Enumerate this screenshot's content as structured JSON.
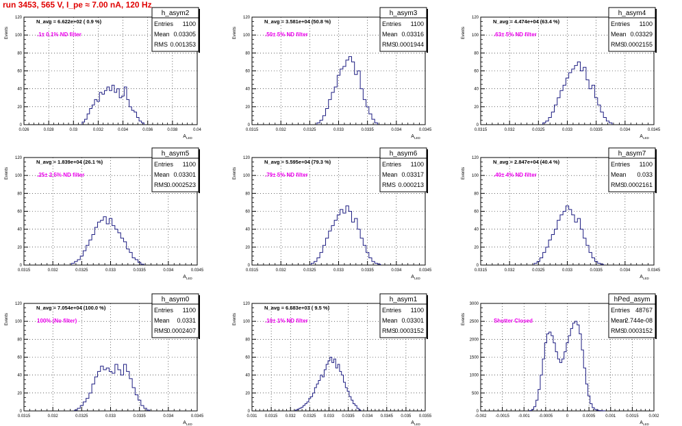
{
  "page": {
    "run_title": "run 3453,   565 V, I_pe ≈ 7.00 nA, 120 Hz",
    "colors": {
      "histogram": "#1a1a80",
      "filter_label": "#ee00ee",
      "run_title": "#e00000"
    }
  },
  "chart_data": [
    {
      "type": "histogram",
      "name": "h_asym2",
      "navg": "N_avg = 6.622e+02 ( 0.9 %)",
      "filter": ".1± 0.1% ND filter",
      "stats": {
        "entries": "1100",
        "mean": "0.03305",
        "rms": "0.001353"
      },
      "ylabel": "Events",
      "xlabel": "A_LED",
      "xlim": [
        0.026,
        0.04
      ],
      "ylim": [
        0,
        120
      ],
      "xticks": [
        "0.026",
        "0.028",
        "0.03",
        "0.032",
        "0.034",
        "0.036",
        "0.038",
        "0.04"
      ],
      "yticks": [
        "0",
        "20",
        "40",
        "60",
        "80",
        "100",
        "120"
      ],
      "x": [
        0.0308,
        0.031,
        0.0312,
        0.0314,
        0.0316,
        0.0318,
        0.032,
        0.0322,
        0.0324,
        0.0326,
        0.0328,
        0.033,
        0.0332,
        0.0334,
        0.0336,
        0.0338,
        0.034,
        0.0342,
        0.0344,
        0.0346,
        0.0348,
        0.035,
        0.0352,
        0.0354,
        0.0356
      ],
      "values": [
        3,
        6,
        12,
        18,
        22,
        28,
        26,
        36,
        34,
        38,
        42,
        38,
        44,
        36,
        40,
        30,
        32,
        42,
        28,
        20,
        16,
        14,
        8,
        4,
        2
      ]
    },
    {
      "type": "histogram",
      "name": "h_asym3",
      "navg": "N_avg = 3.581e+04 (50.8 %)",
      "filter": ".50± 5% ND filter",
      "stats": {
        "entries": "1100",
        "mean": "0.03316",
        "rms": "0.0001944"
      },
      "ylabel": "Events",
      "xlabel": "A_LED",
      "xlim": [
        0.0315,
        0.0345
      ],
      "ylim": [
        0,
        120
      ],
      "xticks": [
        "0.0315",
        "0.032",
        "0.0325",
        "0.033",
        "0.0335",
        "0.034",
        "0.0345"
      ],
      "yticks": [
        "0",
        "20",
        "40",
        "60",
        "80",
        "100",
        "120"
      ],
      "x": [
        0.03265,
        0.0327,
        0.03275,
        0.0328,
        0.03285,
        0.0329,
        0.03295,
        0.033,
        0.03305,
        0.0331,
        0.03315,
        0.0332,
        0.03325,
        0.0333,
        0.03335,
        0.0334,
        0.03345,
        0.0335,
        0.03355,
        0.0336,
        0.03365
      ],
      "values": [
        2,
        5,
        10,
        18,
        28,
        36,
        42,
        55,
        62,
        65,
        72,
        76,
        70,
        56,
        60,
        40,
        28,
        20,
        12,
        6,
        2
      ]
    },
    {
      "type": "histogram",
      "name": "h_asym4",
      "navg": "N_avg = 4.474e+04 (63.4 %)",
      "filter": ".63± 5% ND filter",
      "stats": {
        "entries": "1100",
        "mean": "0.03329",
        "rms": "0.0002155"
      },
      "ylabel": "Events",
      "xlabel": "A_LED",
      "xlim": [
        0.0315,
        0.0345
      ],
      "ylim": [
        0,
        120
      ],
      "xticks": [
        "0.0315",
        "0.032",
        "0.0325",
        "0.033",
        "0.0335",
        "0.034",
        "0.0345"
      ],
      "yticks": [
        "0",
        "20",
        "40",
        "60",
        "80",
        "100",
        "120"
      ],
      "x": [
        0.0326,
        0.03265,
        0.0327,
        0.03275,
        0.0328,
        0.03285,
        0.0329,
        0.03295,
        0.033,
        0.03305,
        0.0331,
        0.03315,
        0.0332,
        0.03325,
        0.0333,
        0.03335,
        0.0334,
        0.03345,
        0.0335,
        0.03355,
        0.0336,
        0.03365,
        0.0337,
        0.03375
      ],
      "values": [
        2,
        4,
        8,
        14,
        22,
        30,
        38,
        44,
        52,
        58,
        62,
        66,
        70,
        60,
        64,
        50,
        40,
        44,
        30,
        22,
        14,
        8,
        4,
        2
      ]
    },
    {
      "type": "histogram",
      "name": "h_asym5",
      "navg": "N_avg = 1.839e+04 (26.1 %)",
      "filter": ".25± 2.5% ND filter",
      "stats": {
        "entries": "1100",
        "mean": "0.03301",
        "rms": "0.0002523"
      },
      "ylabel": "Events",
      "xlabel": "A_LED",
      "xlim": [
        0.0315,
        0.0345
      ],
      "ylim": [
        0,
        120
      ],
      "xticks": [
        "0.0315",
        "0.032",
        "0.0325",
        "0.033",
        "0.0335",
        "0.034",
        "0.0345"
      ],
      "yticks": [
        "0",
        "20",
        "40",
        "60",
        "80",
        "100",
        "120"
      ],
      "x": [
        0.03235,
        0.0324,
        0.03245,
        0.0325,
        0.03255,
        0.0326,
        0.03265,
        0.0327,
        0.03275,
        0.0328,
        0.03285,
        0.0329,
        0.03295,
        0.033,
        0.03305,
        0.0331,
        0.03315,
        0.0332,
        0.03325,
        0.0333,
        0.03335,
        0.0334,
        0.03345,
        0.0335,
        0.03355
      ],
      "values": [
        2,
        4,
        6,
        10,
        16,
        22,
        28,
        34,
        42,
        48,
        50,
        54,
        46,
        52,
        44,
        40,
        36,
        30,
        26,
        18,
        14,
        8,
        6,
        3,
        1
      ]
    },
    {
      "type": "histogram",
      "name": "h_asym6",
      "navg": "N_avg = 5.595e+04 (79.3 %)",
      "filter": ".79± 5% ND filter",
      "stats": {
        "entries": "1100",
        "mean": "0.03317",
        "rms": "0.000213"
      },
      "ylabel": "Events",
      "xlabel": "A_LED",
      "xlim": [
        0.0315,
        0.0345
      ],
      "ylim": [
        0,
        120
      ],
      "xticks": [
        "0.0315",
        "0.032",
        "0.0325",
        "0.033",
        "0.0335",
        "0.034",
        "0.0345"
      ],
      "yticks": [
        "0",
        "20",
        "40",
        "60",
        "80",
        "100",
        "120"
      ],
      "x": [
        0.03255,
        0.0326,
        0.03265,
        0.0327,
        0.03275,
        0.0328,
        0.03285,
        0.0329,
        0.03295,
        0.033,
        0.03305,
        0.0331,
        0.03315,
        0.0332,
        0.03325,
        0.0333,
        0.03335,
        0.0334,
        0.03345,
        0.0335,
        0.03355,
        0.0336,
        0.03365,
        0.0337
      ],
      "values": [
        2,
        4,
        8,
        14,
        22,
        30,
        38,
        44,
        50,
        56,
        62,
        58,
        66,
        60,
        48,
        52,
        40,
        30,
        22,
        14,
        8,
        4,
        2,
        1
      ]
    },
    {
      "type": "histogram",
      "name": "h_asym7",
      "navg": "N_avg = 2.847e+04 (40.4 %)",
      "filter": ".40± 4% ND filter",
      "stats": {
        "entries": "1100",
        "mean": "0.033",
        "rms": "0.0002161"
      },
      "ylabel": "Events",
      "xlabel": "A_LED",
      "xlim": [
        0.0315,
        0.0345
      ],
      "ylim": [
        0,
        120
      ],
      "xticks": [
        "0.0315",
        "0.032",
        "0.0325",
        "0.033",
        "0.0335",
        "0.034",
        "0.0345"
      ],
      "yticks": [
        "0",
        "20",
        "40",
        "60",
        "80",
        "100",
        "120"
      ],
      "x": [
        0.03245,
        0.0325,
        0.03255,
        0.0326,
        0.03265,
        0.0327,
        0.03275,
        0.0328,
        0.03285,
        0.0329,
        0.03295,
        0.033,
        0.03305,
        0.0331,
        0.03315,
        0.0332,
        0.03325,
        0.0333,
        0.03335,
        0.0334,
        0.03345,
        0.0335,
        0.03355,
        0.0336
      ],
      "values": [
        2,
        4,
        8,
        14,
        20,
        28,
        34,
        40,
        50,
        56,
        60,
        66,
        62,
        56,
        48,
        52,
        40,
        30,
        22,
        14,
        8,
        4,
        2,
        1
      ]
    },
    {
      "type": "histogram",
      "name": "h_asym0",
      "navg": "N_avg = 7.054e+04 (100.0 %)",
      "filter": "100% (No filter)",
      "stats": {
        "entries": "1100",
        "mean": "0.0331",
        "rms": "0.0002407"
      },
      "ylabel": "Events",
      "xlabel": "A_LED",
      "xlim": [
        0.0315,
        0.0345
      ],
      "ylim": [
        0,
        120
      ],
      "xticks": [
        "0.0315",
        "0.032",
        "0.0325",
        "0.033",
        "0.0335",
        "0.034",
        "0.0345"
      ],
      "yticks": [
        "0",
        "20",
        "40",
        "60",
        "80",
        "100",
        "120"
      ],
      "x": [
        0.0324,
        0.03245,
        0.0325,
        0.03255,
        0.0326,
        0.03265,
        0.0327,
        0.03275,
        0.0328,
        0.03285,
        0.0329,
        0.03295,
        0.033,
        0.03305,
        0.0331,
        0.03315,
        0.0332,
        0.03325,
        0.0333,
        0.03335,
        0.0334,
        0.03345,
        0.0335,
        0.03355,
        0.0336,
        0.03365
      ],
      "values": [
        1,
        3,
        6,
        10,
        14,
        20,
        30,
        38,
        44,
        50,
        46,
        48,
        44,
        42,
        52,
        46,
        40,
        52,
        44,
        36,
        26,
        18,
        12,
        6,
        3,
        1
      ]
    },
    {
      "type": "histogram",
      "name": "h_asym1",
      "navg": "N_avg = 6.683e+03 ( 9.5 %)",
      "filter": ".10± 1% ND filter",
      "stats": {
        "entries": "1100",
        "mean": "0.03301",
        "rms": "0.0003152"
      },
      "ylabel": "Events",
      "xlabel": "A_LED",
      "xlim": [
        0.031,
        0.0355
      ],
      "ylim": [
        0,
        120
      ],
      "xticks": [
        "0.031",
        "0.0315",
        "0.032",
        "0.0325",
        "0.033",
        "0.0335",
        "0.034",
        "0.0345",
        "0.035",
        "0.0355"
      ],
      "yticks": [
        "0",
        "20",
        "40",
        "60",
        "80",
        "100",
        "120"
      ],
      "x": [
        0.03215,
        0.0322,
        0.03225,
        0.0323,
        0.03235,
        0.0324,
        0.03245,
        0.0325,
        0.03255,
        0.0326,
        0.03265,
        0.0327,
        0.03275,
        0.0328,
        0.03285,
        0.0329,
        0.03295,
        0.033,
        0.03305,
        0.0331,
        0.03315,
        0.0332,
        0.03325,
        0.0333,
        0.03335,
        0.0334,
        0.03345,
        0.0335,
        0.03355,
        0.0336,
        0.03365,
        0.0337,
        0.03375,
        0.0338
      ],
      "values": [
        1,
        2,
        3,
        4,
        6,
        8,
        10,
        14,
        16,
        20,
        26,
        30,
        34,
        40,
        38,
        46,
        52,
        56,
        60,
        54,
        58,
        48,
        52,
        44,
        40,
        32,
        26,
        22,
        16,
        12,
        8,
        6,
        3,
        1
      ]
    },
    {
      "type": "histogram",
      "name": "hPed_asym",
      "navg": "",
      "filter": "Shutter Closed",
      "stats": {
        "entries": "48767",
        "mean": "2.744e-08",
        "rms": "0.0003152"
      },
      "ylabel": "Events",
      "xlabel": "A_LED",
      "xlim": [
        -0.002,
        0.002
      ],
      "ylim": [
        0,
        3000
      ],
      "xticks": [
        "-0.002",
        "-0.0015",
        "-0.001",
        "-0.0005",
        "0",
        "0.0005",
        "0.001",
        "0.0015",
        "0.002"
      ],
      "yticks": [
        "0",
        "500",
        "1000",
        "1500",
        "2000",
        "2500",
        "3000"
      ],
      "x": [
        -0.00085,
        -0.0008,
        -0.00075,
        -0.0007,
        -0.00065,
        -0.0006,
        -0.00055,
        -0.0005,
        -0.00045,
        -0.0004,
        -0.00035,
        -0.0003,
        -0.00025,
        -0.0002,
        -0.00015,
        -0.0001,
        -5e-05,
        0.0,
        5e-05,
        0.0001,
        0.00015,
        0.0002,
        0.00025,
        0.0003,
        0.00035,
        0.0004,
        0.00045,
        0.0005,
        0.00055,
        0.0006,
        0.00065,
        0.0007,
        0.00075,
        0.0008,
        0.00085
      ],
      "values": [
        10,
        40,
        120,
        300,
        600,
        1000,
        1450,
        1900,
        2150,
        2200,
        2100,
        1900,
        1650,
        1450,
        1350,
        1450,
        1650,
        1900,
        2100,
        2300,
        2450,
        2500,
        2400,
        2150,
        1700,
        1200,
        750,
        420,
        200,
        90,
        40,
        20,
        10,
        5,
        2
      ]
    }
  ]
}
